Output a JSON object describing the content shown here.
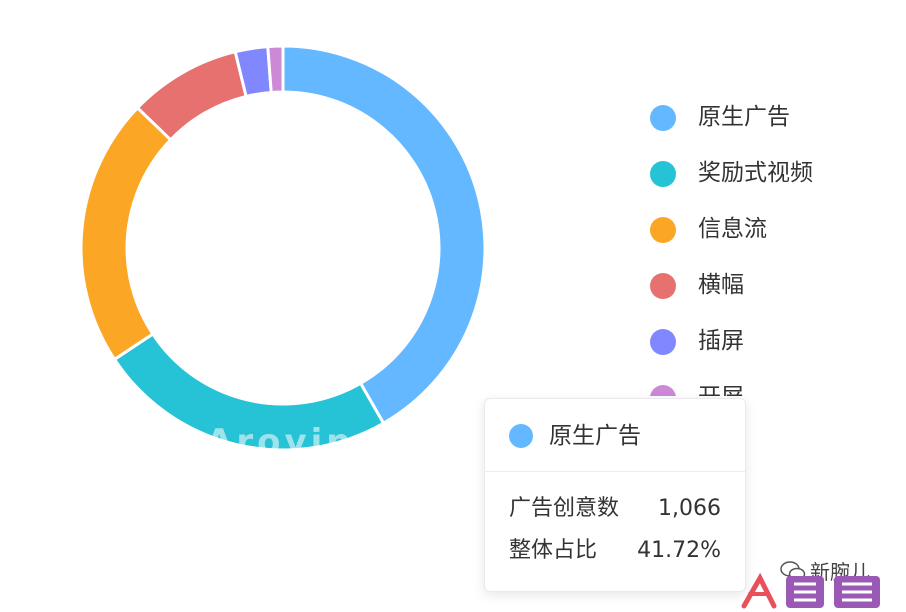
{
  "chart_data": {
    "type": "pie",
    "donut": true,
    "categories": [
      "原生广告",
      "奖励式视频",
      "信息流",
      "横幅",
      "插屏",
      "开屏"
    ],
    "values": [
      41.72,
      24.0,
      21.5,
      9.0,
      2.6,
      1.2
    ],
    "colors": [
      "#63b8ff",
      "#26c2d6",
      "#fca626",
      "#e6716f",
      "#8187ff",
      "#cc89d6"
    ],
    "legend_position": "right",
    "start_angle": "top",
    "direction": "clockwise"
  },
  "legend": {
    "items": [
      {
        "label": "原生广告",
        "color": "#63b8ff"
      },
      {
        "label": "奖励式视频",
        "color": "#26c2d6"
      },
      {
        "label": "信息流",
        "color": "#fca626"
      },
      {
        "label": "横幅",
        "color": "#e6716f"
      },
      {
        "label": "插屏",
        "color": "#8187ff"
      },
      {
        "label": "开屏",
        "color": "#cc89d6"
      }
    ]
  },
  "tooltip": {
    "title": "原生广告",
    "color": "#63b8ff",
    "rows": [
      {
        "label": "广告创意数",
        "value": "1,066"
      },
      {
        "label": "整体占比",
        "value": "41.72%"
      }
    ]
  },
  "watermark": {
    "faint_text": "Arovin",
    "account": "新腕儿",
    "brand": "人人都是产品经理",
    "brand_colors": [
      "#e8505b",
      "#9b59b6"
    ]
  }
}
